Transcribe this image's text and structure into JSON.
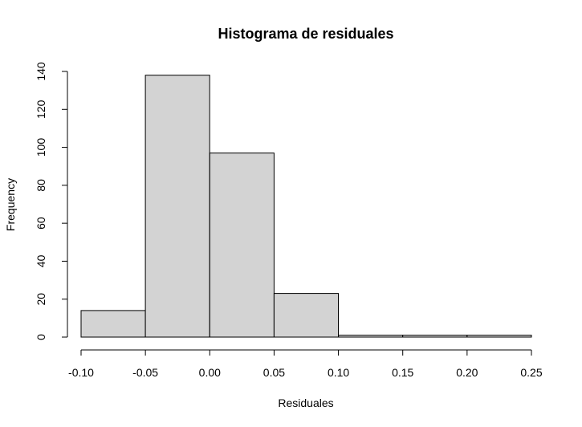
{
  "chart_data": {
    "type": "bar",
    "title": "Histograma de residuales",
    "xlabel": "Residuales",
    "ylabel": "Frequency",
    "bins": [
      {
        "from": -0.1,
        "to": -0.05,
        "count": 14
      },
      {
        "from": -0.05,
        "to": 0.0,
        "count": 138
      },
      {
        "from": 0.0,
        "to": 0.05,
        "count": 97
      },
      {
        "from": 0.05,
        "to": 0.1,
        "count": 23
      },
      {
        "from": 0.1,
        "to": 0.15,
        "count": 1
      },
      {
        "from": 0.15,
        "to": 0.2,
        "count": 1
      },
      {
        "from": 0.2,
        "to": 0.25,
        "count": 1
      }
    ],
    "xlim": [
      -0.1,
      0.25
    ],
    "ylim": [
      0,
      140
    ],
    "x_ticks": [
      "-0.10",
      "-0.05",
      "0.00",
      "0.05",
      "0.10",
      "0.15",
      "0.20",
      "0.25"
    ],
    "y_ticks": [
      "0",
      "20",
      "40",
      "60",
      "80",
      "100",
      "120",
      "140"
    ],
    "bar_color": "#d3d3d3",
    "grid": false
  }
}
